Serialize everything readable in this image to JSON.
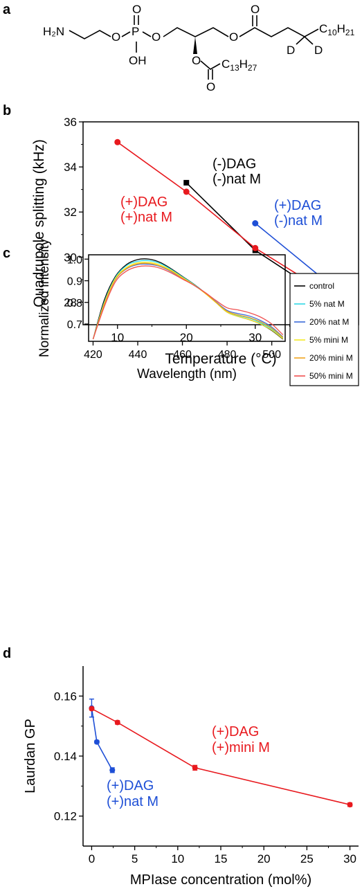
{
  "panels": {
    "a": {
      "label": "a",
      "atoms": {
        "amine": "H₂N",
        "o_ester_left": "O",
        "p": "P",
        "o_top": "O",
        "oh": "OH",
        "o_right": "O",
        "o_sn2": "O",
        "o_sn1": "O",
        "o_carbonyl_top": "O",
        "o_carbonyl_bottom": "O",
        "c13h27": "C13H27",
        "c10h21": "C10H21",
        "d1": "D",
        "d2": "D"
      }
    },
    "b": {
      "label": "b"
    },
    "c": {
      "label": "c"
    },
    "d": {
      "label": "d"
    }
  },
  "colors": {
    "black": "#000000",
    "red": "#e8191e",
    "blue": "#1e4fd6",
    "cyan": "#2fd8e6",
    "mid_blue": "#3a6ad8",
    "yellow": "#f4ea23",
    "orange": "#f0a41c",
    "light_red": "#f05050"
  },
  "chart_data": [
    {
      "type": "line",
      "xlabel": "Temperature (°C)",
      "ylabel": "Quadrupole splitting (kHz)",
      "xlim": [
        5,
        45
      ],
      "ylim": [
        27,
        36
      ],
      "xticks": [
        10,
        20,
        30,
        40
      ],
      "yticks": [
        28,
        30,
        32,
        34,
        36
      ],
      "grid": false,
      "series": [
        {
          "name": "(-)DAG (-)nat M",
          "label_lines": [
            "(-)DAG",
            "(-)nat M"
          ],
          "color": "#000000",
          "marker": "square",
          "x": [
            20,
            30,
            40
          ],
          "y": [
            33.3,
            30.3,
            28.3
          ]
        },
        {
          "name": "(+)DAG (+)nat M",
          "label_lines": [
            "(+)DAG",
            "(+)nat M"
          ],
          "color": "#e8191e",
          "marker": "circle",
          "x": [
            10,
            20,
            30,
            40
          ],
          "y": [
            35.1,
            32.9,
            30.4,
            28.5
          ]
        },
        {
          "name": "(+)DAG (-)nat M",
          "label_lines": [
            "(+)DAG",
            "(-)nat M"
          ],
          "color": "#1e4fd6",
          "marker": "circle",
          "x": [
            30,
            40
          ],
          "y": [
            31.5,
            29.0
          ]
        }
      ]
    },
    {
      "type": "line",
      "xlabel": "Wavelength (nm)",
      "ylabel": "Normalized intensity",
      "xlim": [
        418,
        506
      ],
      "ylim": [
        0.62,
        1.02
      ],
      "xticks": [
        420,
        440,
        460,
        480,
        500
      ],
      "yticks": [
        0.7,
        0.8,
        0.9,
        1.0
      ],
      "ytick_labels": [
        "0.7",
        "0.8",
        "0.9",
        "1.0"
      ],
      "grid": false,
      "legend": "right",
      "series": [
        {
          "name": "control",
          "color": "#000000",
          "x": [
            420,
            425,
            430,
            435,
            440,
            445,
            450,
            455,
            460,
            465,
            470,
            475,
            480,
            485,
            490,
            495,
            500,
            505
          ],
          "y": [
            0.63,
            0.81,
            0.92,
            0.975,
            0.998,
            1.0,
            0.985,
            0.955,
            0.92,
            0.885,
            0.845,
            0.8,
            0.755,
            0.735,
            0.72,
            0.7,
            0.67,
            0.63
          ]
        },
        {
          "name": "5% nat M",
          "color": "#2fd8e6",
          "x": [
            420,
            425,
            430,
            435,
            440,
            445,
            450,
            455,
            460,
            465,
            470,
            475,
            480,
            485,
            490,
            495,
            500,
            505
          ],
          "y": [
            0.63,
            0.8,
            0.915,
            0.97,
            0.99,
            0.993,
            0.98,
            0.952,
            0.918,
            0.884,
            0.845,
            0.801,
            0.758,
            0.74,
            0.727,
            0.706,
            0.676,
            0.635
          ]
        },
        {
          "name": "20% nat M",
          "color": "#3a6ad8",
          "x": [
            420,
            425,
            430,
            435,
            440,
            445,
            450,
            455,
            460,
            465,
            470,
            475,
            480,
            485,
            490,
            495,
            500,
            505
          ],
          "y": [
            0.63,
            0.79,
            0.905,
            0.955,
            0.975,
            0.976,
            0.966,
            0.942,
            0.911,
            0.88,
            0.845,
            0.803,
            0.763,
            0.748,
            0.737,
            0.716,
            0.686,
            0.64
          ]
        },
        {
          "name": "5% mini M",
          "color": "#f4ea23",
          "x": [
            420,
            425,
            430,
            435,
            440,
            445,
            450,
            455,
            460,
            465,
            470,
            475,
            480,
            485,
            490,
            495,
            500,
            505
          ],
          "y": [
            0.63,
            0.795,
            0.91,
            0.962,
            0.983,
            0.985,
            0.973,
            0.948,
            0.915,
            0.882,
            0.843,
            0.799,
            0.755,
            0.735,
            0.72,
            0.7,
            0.672,
            0.632
          ]
        },
        {
          "name": "20% mini M",
          "color": "#f0a41c",
          "x": [
            420,
            425,
            430,
            435,
            440,
            445,
            450,
            455,
            460,
            465,
            470,
            475,
            480,
            485,
            490,
            495,
            500,
            505
          ],
          "y": [
            0.63,
            0.79,
            0.905,
            0.957,
            0.978,
            0.98,
            0.968,
            0.944,
            0.912,
            0.881,
            0.844,
            0.801,
            0.759,
            0.742,
            0.73,
            0.71,
            0.681,
            0.638
          ]
        },
        {
          "name": "50% mini M",
          "color": "#f05050",
          "x": [
            420,
            425,
            430,
            435,
            440,
            445,
            450,
            455,
            460,
            465,
            470,
            475,
            480,
            485,
            490,
            495,
            500,
            505
          ],
          "y": [
            0.63,
            0.78,
            0.895,
            0.945,
            0.965,
            0.968,
            0.958,
            0.936,
            0.908,
            0.88,
            0.847,
            0.809,
            0.775,
            0.765,
            0.752,
            0.732,
            0.7,
            0.65
          ]
        }
      ]
    },
    {
      "type": "line",
      "xlabel": "MPIase concentration (mol%)",
      "ylabel": "Laurdan GP",
      "xlim": [
        -1,
        31
      ],
      "ylim": [
        0.11,
        0.17
      ],
      "xticks": [
        0,
        5,
        10,
        15,
        20,
        25,
        30
      ],
      "yticks": [
        0.12,
        0.14,
        0.16
      ],
      "ytick_labels": [
        "0.12",
        "0.14",
        "0.16"
      ],
      "grid": false,
      "series": [
        {
          "name": "(+)DAG (+)nat M",
          "label_lines": [
            "(+)DAG",
            "(+)nat M"
          ],
          "color": "#1e4fd6",
          "marker": "circle",
          "x": [
            0,
            0.6,
            2.4
          ],
          "y": [
            0.156,
            0.1447,
            0.1353
          ],
          "err": [
            0.003,
            0.0005,
            0.0008
          ]
        },
        {
          "name": "(+)DAG (+)mini M",
          "label_lines": [
            "(+)DAG",
            "(+)mini M"
          ],
          "color": "#e8191e",
          "marker": "circle",
          "x": [
            0,
            3,
            12,
            30
          ],
          "y": [
            0.1558,
            0.1512,
            0.1361,
            0.1238
          ],
          "err": [
            0.0005,
            0.0006,
            0.0008,
            0.0006
          ]
        }
      ]
    }
  ]
}
